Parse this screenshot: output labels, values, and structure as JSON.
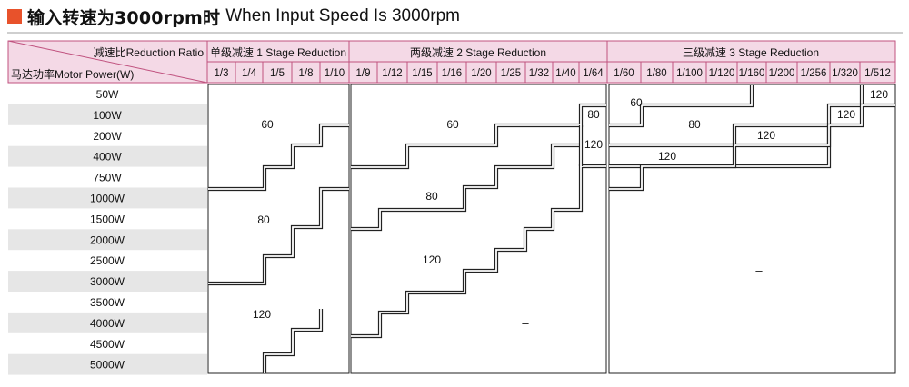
{
  "title": {
    "cn": "输入转速为3000rpm时",
    "en": "When Input Speed Is 3000rpm"
  },
  "corner": {
    "ratio_label": "减速比Reduction Ratio",
    "power_label": "马达功率Motor Power(W)"
  },
  "stages": [
    {
      "label": "单级减速 1 Stage Reduction",
      "ratios": [
        "1/3",
        "1/4",
        "1/5",
        "1/8",
        "1/10"
      ]
    },
    {
      "label": "两级减速 2 Stage Reduction",
      "ratios": [
        "1/9",
        "1/12",
        "1/15",
        "1/16",
        "1/20",
        "1/25",
        "1/32",
        "1/40",
        "1/64"
      ]
    },
    {
      "label": "三级减速 3 Stage Reduction",
      "ratios": [
        "1/60",
        "1/80",
        "1/100",
        "1/120",
        "1/160",
        "1/200",
        "1/256",
        "1/320",
        "1/512"
      ]
    }
  ],
  "motor_powers": [
    "50W",
    "100W",
    "200W",
    "400W",
    "750W",
    "1000W",
    "1500W",
    "2000W",
    "2500W",
    "3000W",
    "3500W",
    "4000W",
    "4500W",
    "5000W"
  ],
  "zone_labels": {
    "s1_60": "60",
    "s1_80": "80",
    "s1_120": "120",
    "s1_dash": "–",
    "s2_60": "60",
    "s2_80": "80",
    "s2_120": "120",
    "s2_80_small": "80",
    "s2_120_small": "120",
    "s2_dash": "–",
    "s3_60": "60",
    "s3_80": "80",
    "s3_120_a": "120",
    "s3_120_b": "120",
    "s3_120_c": "120",
    "s3_120_d": "120",
    "s3_dash": "–"
  },
  "colors": {
    "accent": "#e8522b",
    "header_fill": "#f4d9e6",
    "header_border": "#c0527f",
    "row_stripe": "#e6e6e6"
  }
}
